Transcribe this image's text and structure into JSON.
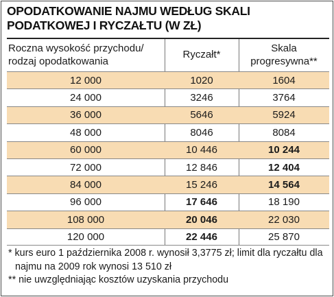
{
  "title": "OPODATKOWANIE NAJMU WEDŁUG SKALI PODATKOWEJ I RYCZAŁTU (W ZŁ)",
  "header": {
    "col0_line1": "Roczna wysokość przychodu/",
    "col0_line2": "rodzaj opodatkowania",
    "col1": "Ryczałt*",
    "col2_line1": "Skala",
    "col2_line2": "progresywna**"
  },
  "rows": [
    {
      "income": "12 000",
      "ryczalt": "1020",
      "skala": "1604"
    },
    {
      "income": "24 000",
      "ryczalt": "3246",
      "skala": "3764"
    },
    {
      "income": "36 000",
      "ryczalt": "5646",
      "skala": "5924"
    },
    {
      "income": "48 000",
      "ryczalt": "8046",
      "skala": "8084"
    },
    {
      "income": "60 000",
      "ryczalt": "10 446",
      "skala": "10 244"
    },
    {
      "income": "72 000",
      "ryczalt": "12 846",
      "skala": "12 404"
    },
    {
      "income": "84 000",
      "ryczalt": "15 246",
      "skala": "14 564"
    },
    {
      "income": "96 000",
      "ryczalt": "17 646",
      "skala": "18 190"
    },
    {
      "income": "108 000",
      "ryczalt": "20 046",
      "skala": "22 030"
    },
    {
      "income": "120 000",
      "ryczalt": "22 446",
      "skala": "25 870"
    }
  ],
  "footnotes": {
    "note1": "* kurs euro 1 października 2008 r. wynosił 3,3775 zł; limit dla ryczałtu dla najmu na 2009 rok wynosi 13 510 zł",
    "note2": "** nie uwzględniając kosztów uzyskania przychodu"
  },
  "colors": {
    "row_shade": "#f8dcb3",
    "border": "#4a4a4a",
    "text": "#1a1a1a"
  }
}
